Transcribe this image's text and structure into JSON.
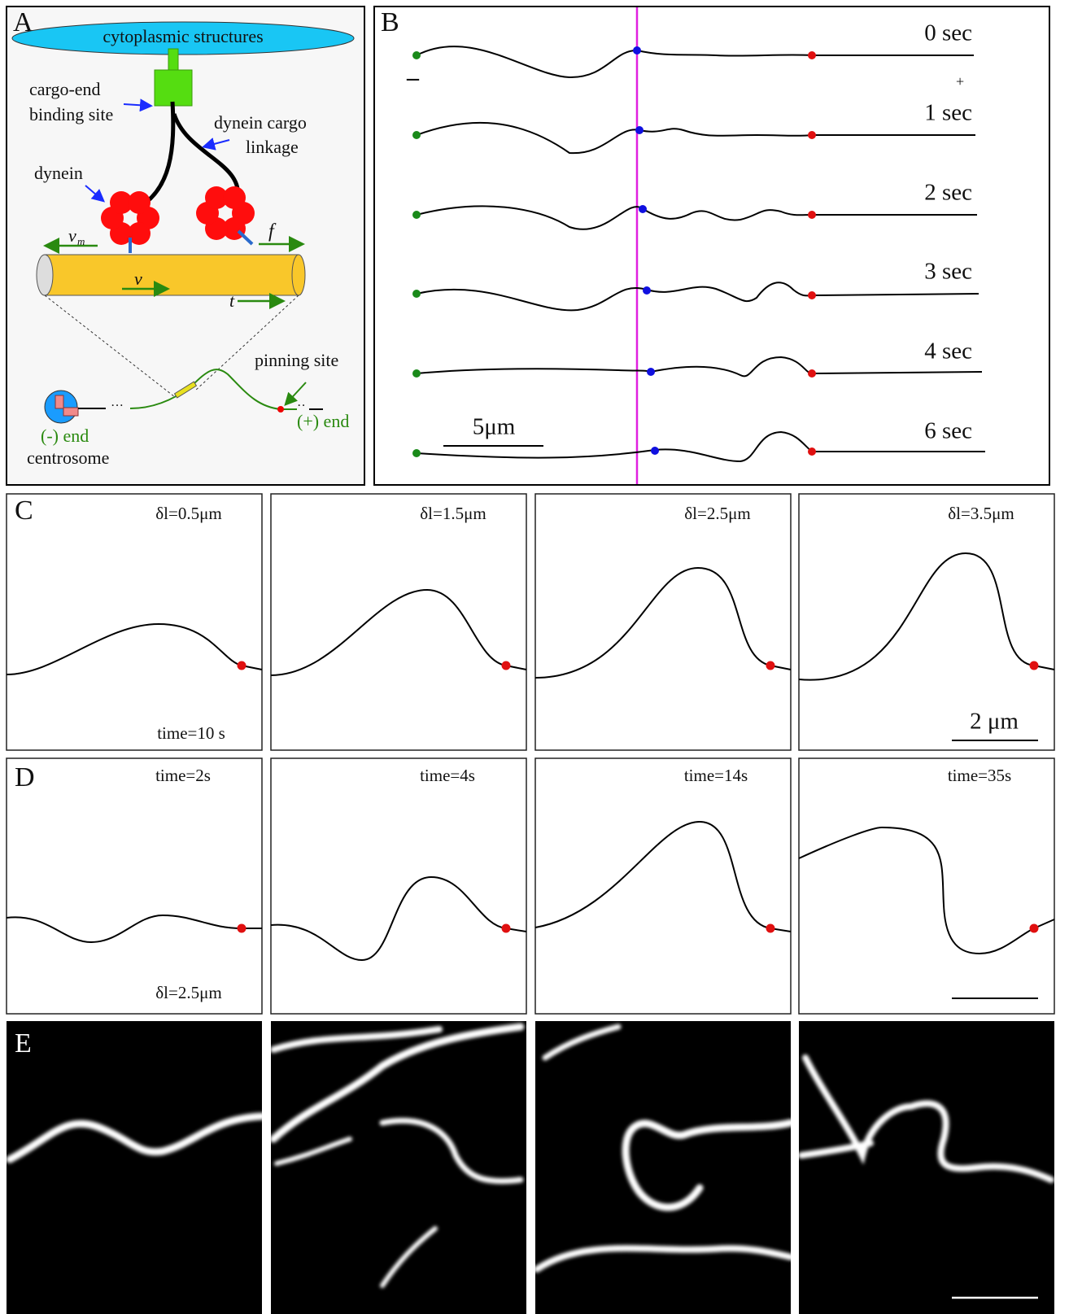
{
  "panel_a": {
    "label": "A",
    "cytoplasm": "cytoplasmic structures",
    "binding_site": [
      "cargo-end",
      "binding site"
    ],
    "linkage": [
      "dynein cargo",
      "linkage"
    ],
    "dynein": "dynein",
    "vm": "v",
    "vm_sub": "m",
    "f": "f",
    "v": "v",
    "t": "t",
    "pinning": "pinning site",
    "minus_end": "(-) end",
    "plus_end": "(+) end",
    "centrosome": "centrosome"
  },
  "panel_b": {
    "label": "B",
    "minus": "–",
    "plus": "+",
    "scale": "5μm",
    "times": [
      "0 sec",
      "1 sec",
      "2 sec",
      "3 sec",
      "4 sec",
      "6 sec"
    ]
  },
  "panel_c": {
    "label": "C",
    "deltas": [
      "δl=0.5μm",
      "δl=1.5μm",
      "δl=2.5μm",
      "δl=3.5μm"
    ],
    "time": "time=10 s",
    "scale": "2 μm"
  },
  "panel_d": {
    "label": "D",
    "times": [
      "time=2s",
      "time=4s",
      "time=14s",
      "time=35s"
    ],
    "delta": "δl=2.5μm"
  },
  "panel_e": {
    "label": "E"
  }
}
